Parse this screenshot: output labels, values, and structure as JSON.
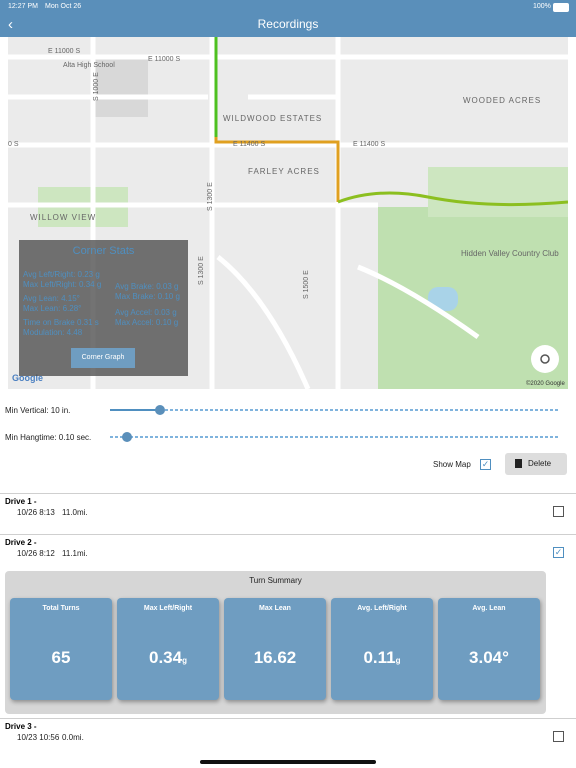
{
  "status_bar": {
    "time": "12:27 PM",
    "date": "Mon Oct 26",
    "battery": "100%"
  },
  "nav": {
    "title": "Recordings"
  },
  "map": {
    "labels": [
      "E 11000 S",
      "Alta High School",
      "E 11000 S",
      "S 1000 E",
      "WILDWOOD ESTATES",
      "E 11400 S",
      "E 11400 S",
      "WOODED ACRES",
      "FARLEY ACRES",
      "S 1300 E",
      "WILLOW VIEW",
      "S 1300 E",
      "Hidden Valley Country Club",
      "S 1500 E",
      "0 S"
    ],
    "attribution": "Google",
    "copyright": "©2020 Google"
  },
  "corner_stats": {
    "title": "Corner Stats",
    "left": [
      "Avg Left/Right: 0.23 g",
      "Max Left/Right: 0.34 g",
      "Avg Lean: 4.15°",
      "Max Lean: 6.28°",
      "Time on Brake 0.31 s",
      "Modulation: 4.48"
    ],
    "right": [
      "Avg Brake: 0.03 g",
      "Max Brake: 0.10 g",
      "Avg Accel: 0.03 g",
      "Max Accel: 0.10 g"
    ],
    "button": "Corner Graph"
  },
  "controls": {
    "min_vertical": "Min Vertical: 10 in.",
    "min_hangtime": "Min Hangtime: 0.10 sec.",
    "show_map": "Show Map",
    "delete": "Delete"
  },
  "drives": [
    {
      "name": "Drive 1 -",
      "date": "10/26 8:13",
      "distance": "11.0mi."
    },
    {
      "name": "Drive 2 -",
      "date": "10/26 8:12",
      "distance": "11.1mi."
    },
    {
      "name": "Drive 3 -",
      "date": "10/23 10:56",
      "distance": "0.0mi."
    }
  ],
  "turn_summary": {
    "title": "Turn Summary",
    "tiles": [
      {
        "label": "Total Turns",
        "value": "65"
      },
      {
        "label": "Max Left/Right",
        "value": "0.34",
        "unit": "g"
      },
      {
        "label": "Max Lean",
        "value": "16.62"
      },
      {
        "label": "Avg. Left/Right",
        "value": "0.11",
        "unit": "g"
      },
      {
        "label": "Avg. Lean",
        "value": "3.04°"
      }
    ]
  }
}
